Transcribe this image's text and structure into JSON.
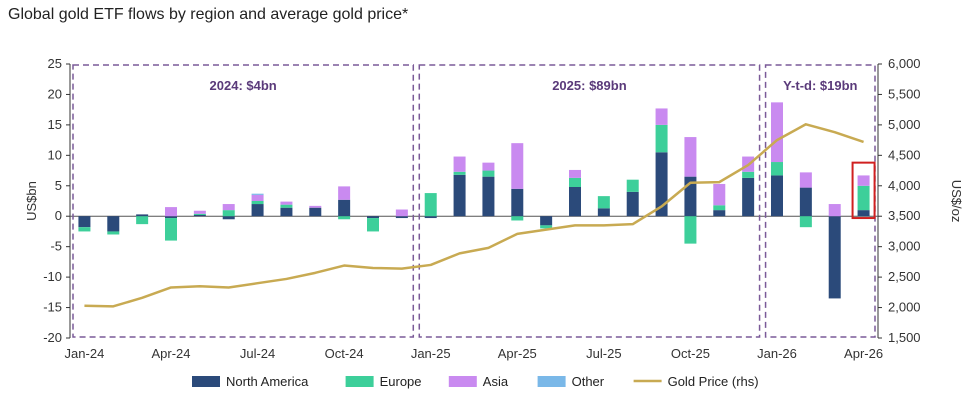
{
  "chart_data": {
    "type": "bar",
    "title": "Global gold ETF flows by region and average gold price*",
    "ylabel": "US$bn",
    "y2label": "US$/oz",
    "ylim": [
      -20,
      25
    ],
    "y2lim": [
      1500,
      6000
    ],
    "yticks": [
      -20,
      -15,
      -10,
      -5,
      0,
      5,
      10,
      15,
      20,
      25
    ],
    "y2ticks": [
      "1,500",
      "2,000",
      "2,500",
      "3,000",
      "3,500",
      "4,000",
      "4,500",
      "5,000",
      "5,500",
      "6,000"
    ],
    "y2tick_values": [
      1500,
      2000,
      2500,
      3000,
      3500,
      4000,
      4500,
      5000,
      5500,
      6000
    ],
    "categories": [
      "Jan-24",
      "Feb-24",
      "Mar-24",
      "Apr-24",
      "May-24",
      "Jun-24",
      "Jul-24",
      "Aug-24",
      "Sep-24",
      "Oct-24",
      "Nov-24",
      "Dec-24",
      "Jan-25",
      "Feb-25",
      "Mar-25",
      "Apr-25",
      "May-25",
      "Jun-25",
      "Jul-25",
      "Aug-25",
      "Sep-25",
      "Oct-25",
      "Nov-25",
      "Dec-25",
      "Jan-26",
      "Feb-26",
      "Mar-26",
      "Apr-26"
    ],
    "xtick_labels": [
      {
        "index": 0,
        "label": "Jan-24"
      },
      {
        "index": 3,
        "label": "Apr-24"
      },
      {
        "index": 6,
        "label": "Jul-24"
      },
      {
        "index": 9,
        "label": "Oct-24"
      },
      {
        "index": 12,
        "label": "Jan-25"
      },
      {
        "index": 15,
        "label": "Apr-25"
      },
      {
        "index": 18,
        "label": "Jul-25"
      },
      {
        "index": 21,
        "label": "Oct-25"
      },
      {
        "index": 24,
        "label": "Jan-26"
      },
      {
        "index": 27,
        "label": "Apr-26"
      }
    ],
    "series": [
      {
        "name": "North America",
        "color": "#2b4a7a",
        "values": [
          -1.8,
          -2.5,
          0.3,
          -0.3,
          0.2,
          -0.5,
          2.0,
          1.4,
          1.4,
          2.7,
          -0.3,
          -0.3,
          -0.3,
          6.8,
          6.5,
          4.5,
          -1.5,
          4.8,
          1.3,
          4.0,
          10.5,
          6.5,
          1.0,
          6.3,
          6.7,
          4.7,
          -13.5,
          1.0
        ]
      },
      {
        "name": "Europe",
        "color": "#3dcf9a",
        "values": [
          -0.7,
          -0.5,
          -1.3,
          -3.7,
          0.2,
          1.0,
          0.5,
          0.5,
          0.0,
          -0.5,
          -2.2,
          0.0,
          3.8,
          0.5,
          1.0,
          -0.7,
          -0.5,
          1.5,
          2.0,
          2.0,
          4.5,
          -4.5,
          0.8,
          1.0,
          2.2,
          -1.8,
          0.0,
          4.0
        ]
      },
      {
        "name": "Asia",
        "color": "#c98af0",
        "values": [
          0.0,
          0.0,
          0.0,
          1.5,
          0.5,
          1.0,
          1.0,
          0.5,
          0.3,
          2.2,
          0.0,
          1.1,
          0.0,
          2.5,
          1.3,
          7.5,
          0.0,
          1.3,
          0.0,
          0.0,
          2.7,
          6.5,
          3.5,
          2.5,
          9.8,
          2.5,
          2.0,
          1.7
        ]
      },
      {
        "name": "Other",
        "color": "#7ab8e8",
        "values": [
          0.0,
          0.0,
          0.0,
          0.0,
          0.0,
          0.0,
          0.2,
          0.0,
          0.0,
          0.0,
          0.0,
          0.0,
          0.0,
          0.0,
          0.0,
          0.0,
          0.0,
          0.0,
          0.0,
          0.0,
          0.0,
          0.0,
          0.0,
          0.0,
          0.0,
          0.0,
          0.0,
          0.0
        ]
      }
    ],
    "line": {
      "name": "Gold Price (rhs)",
      "color": "#c8aa52",
      "axis": "right",
      "values": [
        2030,
        2020,
        2160,
        2330,
        2350,
        2330,
        2400,
        2470,
        2570,
        2690,
        2650,
        2640,
        2700,
        2890,
        2980,
        3210,
        3280,
        3350,
        3350,
        3370,
        3660,
        4050,
        4060,
        4340,
        4750,
        5010,
        4880,
        4720
      ]
    },
    "periods": [
      {
        "label": "2024: $4bn",
        "start": 0,
        "end": 11
      },
      {
        "label": "2025: $89bn",
        "start": 12,
        "end": 23
      },
      {
        "label": "Y-t-d: $19bn",
        "start": 24,
        "end": 27
      }
    ],
    "highlight_index": 27,
    "highlight_color": "#d02020",
    "period_color": "#7a5a98",
    "legend_position": "bottom",
    "grid": false
  }
}
